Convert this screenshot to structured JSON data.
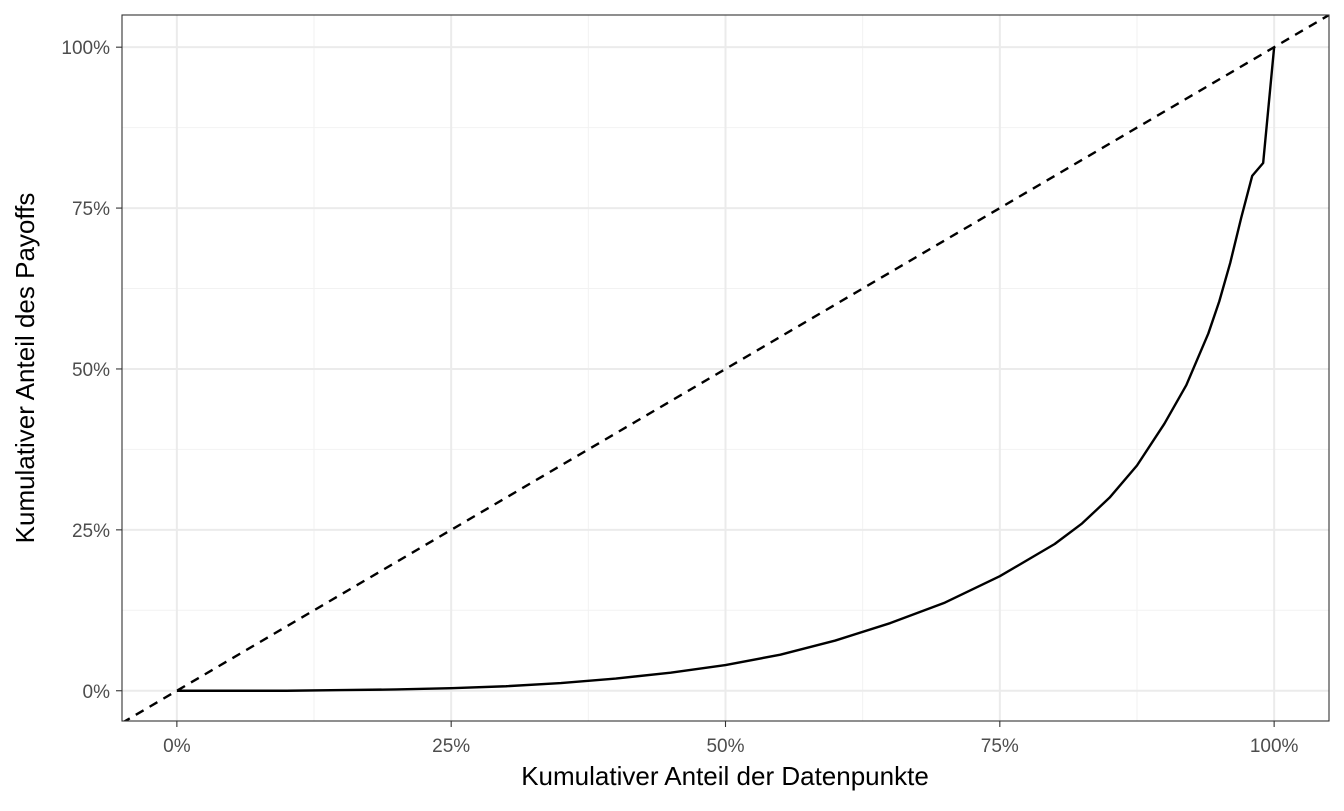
{
  "chart_data": {
    "type": "line",
    "title": "",
    "xlabel": "Kumulativer Anteil der Datenpunkte",
    "ylabel": "Kumulativer Anteil des Payoffs",
    "xlim": [
      -0.05,
      1.05
    ],
    "ylim": [
      -0.047,
      1.05
    ],
    "x_ticks": [
      0,
      0.25,
      0.5,
      0.75,
      1.0
    ],
    "x_tick_labels": [
      "0%",
      "25%",
      "50%",
      "75%",
      "100%"
    ],
    "y_ticks": [
      0,
      0.25,
      0.5,
      0.75,
      1.0
    ],
    "y_tick_labels": [
      "0%",
      "25%",
      "50%",
      "75%",
      "100%"
    ],
    "grid": true,
    "legend": "none",
    "series": [
      {
        "style": "solid",
        "color": "#000000",
        "x": [
          0,
          0.05,
          0.1,
          0.15,
          0.2,
          0.25,
          0.3,
          0.35,
          0.4,
          0.45,
          0.5,
          0.55,
          0.6,
          0.65,
          0.7,
          0.75,
          0.8,
          0.825,
          0.85,
          0.875,
          0.9,
          0.92,
          0.94,
          0.95,
          0.96,
          0.97,
          0.98,
          0.99,
          1.0
        ],
        "y": [
          0,
          0,
          0,
          0.001,
          0.002,
          0.004,
          0.007,
          0.012,
          0.019,
          0.028,
          0.04,
          0.056,
          0.078,
          0.105,
          0.137,
          0.178,
          0.228,
          0.26,
          0.3,
          0.35,
          0.415,
          0.475,
          0.555,
          0.605,
          0.665,
          0.735,
          0.8,
          0.82,
          1.0
        ]
      },
      {
        "style": "dashed",
        "color": "#000000",
        "x": [
          -0.05,
          1.05
        ],
        "y": [
          -0.05,
          1.05
        ]
      }
    ]
  },
  "colors": {
    "panel_border": "#333333",
    "grid_major": "#ebebeb",
    "grid_minor": "#f2f2f2",
    "tick_text": "#4d4d4d",
    "line": "#000000"
  }
}
